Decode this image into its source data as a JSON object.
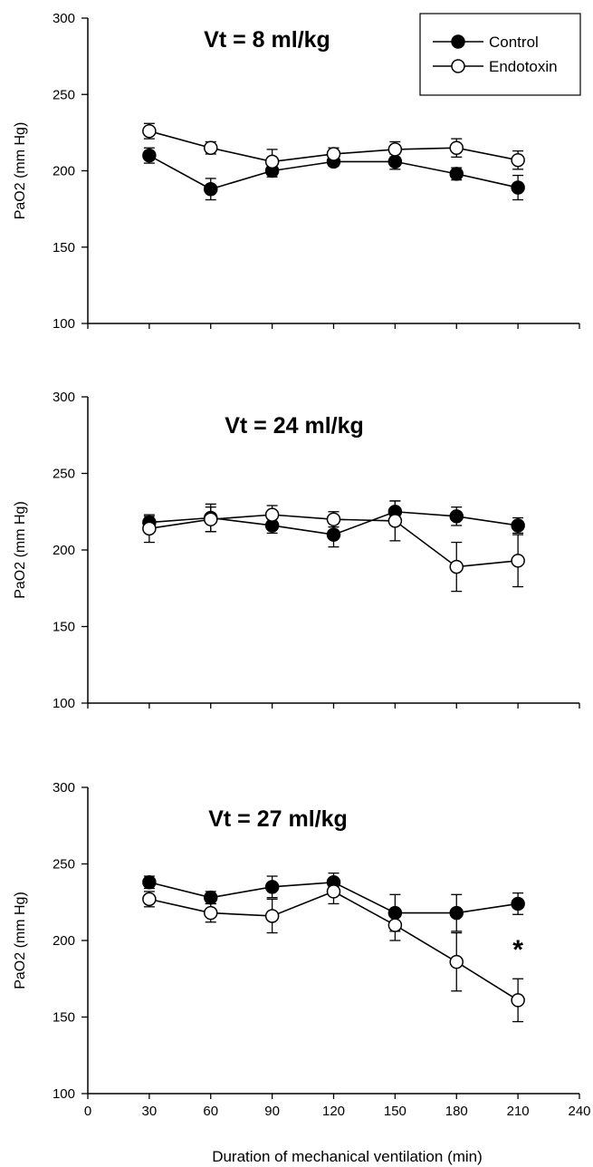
{
  "chart_data": [
    {
      "type": "line",
      "title": "Vt = 8 ml/kg",
      "ylabel": "PaO2 (mm Hg)",
      "xlabel": "",
      "xlim": [
        0,
        240
      ],
      "ylim": [
        100,
        300
      ],
      "x_ticks": [
        "0",
        "30",
        "60",
        "90",
        "120",
        "150",
        "180",
        "210",
        "240"
      ],
      "x_tick_labels_shown": false,
      "y_ticks": [
        "100",
        "150",
        "200",
        "250",
        "300"
      ],
      "x": [
        30,
        60,
        90,
        120,
        150,
        180,
        210
      ],
      "legend": {
        "position": "top-right",
        "entries": [
          "Control",
          "Endotoxin"
        ]
      },
      "series": [
        {
          "name": "Control",
          "marker": "filled-circle",
          "values": [
            210,
            188,
            200,
            206,
            206,
            198,
            189
          ],
          "errors": [
            5,
            7,
            4,
            3,
            5,
            4,
            8
          ]
        },
        {
          "name": "Endotoxin",
          "marker": "open-circle",
          "values": [
            226,
            215,
            206,
            211,
            214,
            215,
            207
          ],
          "errors": [
            5,
            4,
            8,
            4,
            5,
            6,
            6
          ]
        }
      ],
      "annotations": []
    },
    {
      "type": "line",
      "title": "Vt = 24 ml/kg",
      "ylabel": "PaO2 (mm Hg)",
      "xlabel": "",
      "xlim": [
        0,
        240
      ],
      "ylim": [
        100,
        300
      ],
      "x_ticks": [
        "0",
        "30",
        "60",
        "90",
        "120",
        "150",
        "180",
        "210",
        "240"
      ],
      "x_tick_labels_shown": false,
      "y_ticks": [
        "100",
        "150",
        "200",
        "250",
        "300"
      ],
      "x": [
        30,
        60,
        90,
        120,
        150,
        180,
        210
      ],
      "legend": null,
      "series": [
        {
          "name": "Control",
          "marker": "filled-circle",
          "values": [
            218,
            221,
            216,
            210,
            225,
            222,
            216
          ],
          "errors": [
            4,
            9,
            5,
            8,
            7,
            6,
            5
          ]
        },
        {
          "name": "Endotoxin",
          "marker": "open-circle",
          "values": [
            214,
            220,
            223,
            220,
            219,
            189,
            193
          ],
          "errors": [
            9,
            8,
            6,
            5,
            13,
            16,
            17
          ]
        }
      ],
      "annotations": []
    },
    {
      "type": "line",
      "title": "Vt = 27 ml/kg",
      "ylabel": "PaO2 (mm Hg)",
      "xlabel": "Duration of mechanical ventilation (min)",
      "xlim": [
        0,
        240
      ],
      "ylim": [
        100,
        300
      ],
      "x_ticks": [
        "0",
        "30",
        "60",
        "90",
        "120",
        "150",
        "180",
        "210",
        "240"
      ],
      "x_tick_labels_shown": true,
      "y_ticks": [
        "100",
        "150",
        "200",
        "250",
        "300"
      ],
      "x": [
        30,
        60,
        90,
        120,
        150,
        180,
        210
      ],
      "legend": null,
      "series": [
        {
          "name": "Control",
          "marker": "filled-circle",
          "values": [
            238,
            228,
            235,
            238,
            218,
            218,
            224
          ],
          "errors": [
            4,
            4,
            7,
            6,
            12,
            12,
            7
          ]
        },
        {
          "name": "Endotoxin",
          "marker": "open-circle",
          "values": [
            227,
            218,
            216,
            232,
            210,
            186,
            161
          ],
          "errors": [
            5,
            6,
            11,
            8,
            10,
            19,
            14
          ]
        }
      ],
      "annotations": [
        {
          "text": "*",
          "x": 210,
          "y": 194
        }
      ]
    }
  ]
}
